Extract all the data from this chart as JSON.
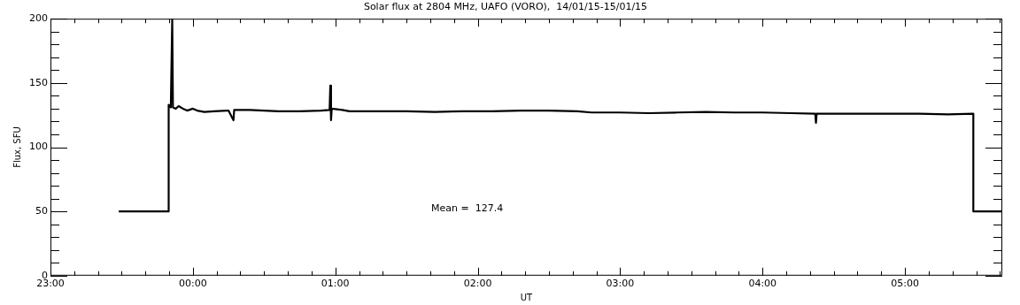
{
  "chart_data": {
    "type": "line",
    "title": "Solar flux at 2804 MHz, UAFO (VORO),  14/01/15-15/01/15",
    "xlabel": "UT",
    "ylabel": "Flux, SFU",
    "annotations": [
      "Mean =  127.4"
    ],
    "x": [
      "--01-14T23:28:48",
      "--01-14T23:49:48",
      "--01-14T23:49:48",
      "--01-14T23:50:42",
      "--01-14T23:51:18",
      "--01-14T23:51:36",
      "--01-14T23:52:48",
      "--01-14T23:54",
      "--01-14T23:55:48",
      "--01-14T23:57:36",
      "--01-15T00:00",
      "--01-15T00:01:48",
      "--01-15T00:04:48",
      "--01-15T00:09",
      "--01-15T00:15",
      "--01-15T00:17:06",
      "--01-15T00:17:24",
      "--01-15T00:24",
      "--01-15T00:30",
      "--01-15T00:36",
      "--01-15T00:45",
      "--01-15T00:54",
      "--01-15T00:57:36",
      "--01-15T00:57:54",
      "--01-15T00:58:12",
      "--01-15T00:58:30",
      "--01-15T01:03",
      "--01-15T01:06",
      "--01-15T01:18",
      "--01-15T01:30",
      "--01-15T01:42",
      "--01-15T01:54",
      "--01-15T02:06",
      "--01-15T02:18",
      "--01-15T02:30",
      "--01-15T02:42",
      "--01-15T02:48",
      "--01-15T03:00",
      "--01-15T03:12",
      "--01-15T03:24",
      "--01-15T03:36",
      "--01-15T03:48",
      "--01-15T04:00",
      "--01-15T04:12",
      "--01-15T04:22:12",
      "--01-15T04:22:30",
      "--01-15T04:22:48",
      "--01-15T04:30",
      "--01-15T04:42",
      "--01-15T04:54",
      "--01-15T05:06",
      "--01-15T05:18",
      "--01-15T05:28:48",
      "--01-15T05:28:48",
      "--01-15T05:41"
    ],
    "series": [
      {
        "color": "#000000",
        "values": [
          50,
          50,
          133,
          131,
          200,
          131,
          130,
          132,
          130,
          128.5,
          130,
          128.5,
          127.5,
          128,
          128.5,
          121,
          129,
          129,
          128.5,
          128,
          128,
          128.5,
          129,
          148,
          121,
          130,
          129,
          128,
          128,
          128,
          127.5,
          128,
          128,
          128.5,
          128.5,
          128,
          127,
          127,
          126.5,
          127,
          127.5,
          127,
          127,
          126.5,
          126,
          119,
          126,
          126,
          126,
          126,
          126,
          125.5,
          126,
          50,
          50
        ]
      }
    ],
    "xlim": [
      "--01-14T23:00",
      "--01-15T05:41"
    ],
    "xticks": [
      {
        "value": "--01-14T23:00",
        "label": "23:00"
      },
      {
        "value": "--01-14T23:10",
        "label": null
      },
      {
        "value": "--01-14T23:20",
        "label": null
      },
      {
        "value": "--01-14T23:30",
        "label": null
      },
      {
        "value": "--01-14T23:40",
        "label": null
      },
      {
        "value": "--01-14T23:50",
        "label": null
      },
      {
        "value": "--01-15T00:00",
        "label": "00:00"
      },
      {
        "value": "--01-15T00:10",
        "label": null
      },
      {
        "value": "--01-15T00:20",
        "label": null
      },
      {
        "value": "--01-15T00:30",
        "label": null
      },
      {
        "value": "--01-15T00:40",
        "label": null
      },
      {
        "value": "--01-15T00:50",
        "label": null
      },
      {
        "value": "--01-15T01:00",
        "label": "01:00"
      },
      {
        "value": "--01-15T01:10",
        "label": null
      },
      {
        "value": "--01-15T01:20",
        "label": null
      },
      {
        "value": "--01-15T01:30",
        "label": null
      },
      {
        "value": "--01-15T01:40",
        "label": null
      },
      {
        "value": "--01-15T01:50",
        "label": null
      },
      {
        "value": "--01-15T02:00",
        "label": "02:00"
      },
      {
        "value": "--01-15T02:10",
        "label": null
      },
      {
        "value": "--01-15T02:20",
        "label": null
      },
      {
        "value": "--01-15T02:30",
        "label": null
      },
      {
        "value": "--01-15T02:40",
        "label": null
      },
      {
        "value": "--01-15T02:50",
        "label": null
      },
      {
        "value": "--01-15T03:00",
        "label": "03:00"
      },
      {
        "value": "--01-15T03:10",
        "label": null
      },
      {
        "value": "--01-15T03:20",
        "label": null
      },
      {
        "value": "--01-15T03:30",
        "label": null
      },
      {
        "value": "--01-15T03:40",
        "label": null
      },
      {
        "value": "--01-15T03:50",
        "label": null
      },
      {
        "value": "--01-15T04:00",
        "label": "04:00"
      },
      {
        "value": "--01-15T04:10",
        "label": null
      },
      {
        "value": "--01-15T04:20",
        "label": null
      },
      {
        "value": "--01-15T04:30",
        "label": null
      },
      {
        "value": "--01-15T04:40",
        "label": null
      },
      {
        "value": "--01-15T04:50",
        "label": null
      },
      {
        "value": "--01-15T05:00",
        "label": "05:00"
      },
      {
        "value": "--01-15T05:10",
        "label": null
      },
      {
        "value": "--01-15T05:20",
        "label": null
      },
      {
        "value": "--01-15T05:30",
        "label": null
      },
      {
        "value": "--01-15T05:40",
        "label": null
      }
    ],
    "ylim": [
      0,
      200
    ],
    "yticks": [
      0,
      {
        "value": 10,
        "label": null
      },
      {
        "value": 20,
        "label": null
      },
      {
        "value": 30,
        "label": null
      },
      {
        "value": 40,
        "label": null
      },
      50,
      {
        "value": 60,
        "label": null
      },
      {
        "value": 70,
        "label": null
      },
      {
        "value": 80,
        "label": null
      },
      {
        "value": 90,
        "label": null
      },
      100,
      {
        "value": 110,
        "label": null
      },
      {
        "value": 120,
        "label": null
      },
      {
        "value": 130,
        "label": null
      },
      {
        "value": 140,
        "label": null
      },
      150,
      {
        "value": 160,
        "label": null
      },
      {
        "value": 170,
        "label": null
      },
      {
        "value": 180,
        "label": null
      },
      {
        "value": 190,
        "label": null
      },
      200
    ],
    "marker": "none",
    "line_style": "solid"
  }
}
